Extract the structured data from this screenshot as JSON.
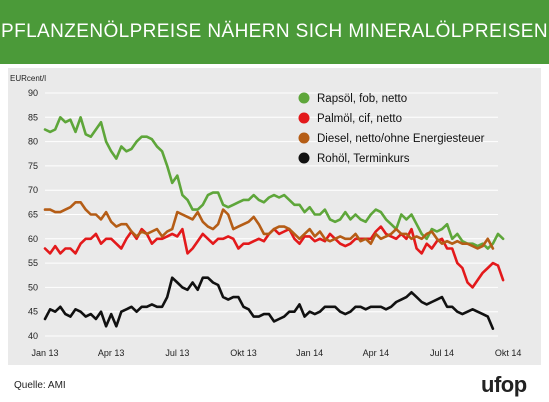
{
  "header": {
    "title": "PFLANZENÖLPREISE NÄHERN SICH MINERALÖLPREISEN"
  },
  "footer": {
    "source": "Quelle: AMI",
    "logo_text": "ufop"
  },
  "colors": {
    "header_bg": "#4b9a39",
    "panel_bg": "#eaeaea",
    "grid": "#ffffff"
  },
  "chart_data": {
    "type": "line",
    "ylabel": "EURcent/l",
    "ylim": [
      40,
      90
    ],
    "yticks": [
      40,
      45,
      50,
      55,
      60,
      65,
      70,
      75,
      80,
      85,
      90
    ],
    "xlim": [
      0,
      89
    ],
    "xticks": [
      {
        "x": 0,
        "label": "Jan 13"
      },
      {
        "x": 13,
        "label": "Apr 13"
      },
      {
        "x": 26,
        "label": "Jul 13"
      },
      {
        "x": 39,
        "label": "Okt 13"
      },
      {
        "x": 52,
        "label": "Jan 14"
      },
      {
        "x": 65,
        "label": "Apr 14"
      },
      {
        "x": 78,
        "label": "Jul 14"
      },
      {
        "x": 91,
        "label": "Okt 14"
      }
    ],
    "grid": true,
    "legend_position": "top-right",
    "series": [
      {
        "name": "Rapsöl, fob, netto",
        "color": "#5ea63a",
        "values": [
          82.5,
          82,
          82.5,
          85,
          84,
          84.5,
          82,
          85,
          81.5,
          81,
          82.5,
          84,
          80,
          78,
          76.5,
          79,
          78,
          78.5,
          80,
          81,
          81,
          80.5,
          79,
          78,
          75,
          71.5,
          73,
          69,
          68,
          66,
          66,
          67,
          69,
          69.5,
          69.5,
          67,
          66.5,
          67,
          67.5,
          68,
          68,
          69,
          68,
          67.5,
          68.5,
          69,
          68.5,
          69,
          68,
          67,
          67,
          65.5,
          66.5,
          65,
          65,
          66,
          64,
          63.5,
          64,
          65.5,
          64,
          65,
          64,
          63.5,
          65,
          66,
          65.5,
          64,
          63,
          62,
          65,
          64,
          65,
          63,
          61,
          60,
          62,
          61.5,
          62,
          63,
          60,
          61,
          59.5,
          59,
          59,
          58.5,
          59,
          58,
          59,
          61,
          60
        ]
      },
      {
        "name": "Palmöl, cif, netto",
        "color": "#e3191b",
        "values": [
          58,
          57,
          58.5,
          57,
          58,
          58,
          57,
          59,
          60,
          60,
          61,
          59,
          60,
          60,
          59,
          58,
          60,
          61.5,
          60,
          62,
          61,
          59,
          60,
          60,
          60.5,
          61,
          60.5,
          62,
          57,
          58,
          59.5,
          61,
          60,
          59,
          60,
          60,
          60.5,
          60,
          58,
          59,
          59,
          59.5,
          60,
          59.5,
          61,
          62,
          61,
          61.5,
          62,
          60,
          59,
          60.5,
          60.5,
          59.5,
          60,
          59.5,
          61,
          60,
          59,
          58.5,
          59,
          60,
          60,
          60,
          60,
          61.5,
          62.5,
          61,
          60.5,
          60,
          61,
          60,
          62,
          58,
          57,
          59,
          58,
          59.5,
          60,
          58,
          58,
          55,
          54,
          51,
          50,
          51.5,
          53,
          54,
          55,
          54.5,
          51.5
        ]
      },
      {
        "name": "Diesel, netto/ohne Energiesteuer",
        "color": "#b55d16",
        "values": [
          66,
          66,
          65.5,
          65.5,
          66,
          66.5,
          67.5,
          67.5,
          66,
          65,
          65,
          64,
          65.5,
          63.5,
          62.5,
          63,
          63,
          61.5,
          60.5,
          61.5,
          61,
          61.5,
          62,
          60.5,
          61.5,
          62,
          65.5,
          65,
          64.5,
          64,
          65.5,
          63.5,
          62.5,
          62,
          63,
          66,
          65,
          62,
          62.5,
          63,
          63.5,
          64.5,
          63,
          61,
          61,
          62,
          62.5,
          62.5,
          62,
          61,
          60,
          61,
          62,
          60.5,
          61.5,
          60,
          59.5,
          60,
          60.5,
          60,
          60,
          61,
          59.5,
          60,
          59,
          61,
          60,
          60.5,
          61,
          62,
          61,
          61,
          60,
          60.5,
          60,
          61,
          61.5,
          60,
          59,
          59.5,
          59,
          59.5,
          59,
          59,
          58.5,
          58,
          58.5,
          60,
          58
        ]
      },
      {
        "name": "Rohöl, Terminkurs",
        "color": "#111111",
        "values": [
          43.5,
          45.5,
          45,
          46,
          44.5,
          44,
          45.5,
          45,
          44,
          44.5,
          43.5,
          45,
          42,
          44.5,
          42,
          45,
          45.5,
          46,
          45,
          46,
          46,
          46.5,
          46,
          46,
          48,
          52,
          51,
          50,
          49.5,
          51,
          49.5,
          52,
          52,
          51,
          50.5,
          48,
          47.5,
          48,
          48,
          46,
          45.5,
          44,
          44,
          44.5,
          44.5,
          43,
          43.5,
          44,
          45,
          45,
          46.5,
          44,
          45,
          44.5,
          45,
          46,
          46,
          46,
          45,
          44.5,
          45,
          46,
          46,
          45.5,
          46,
          46,
          46,
          45.5,
          46,
          47,
          47.5,
          48,
          49,
          48,
          47,
          46.5,
          47,
          47.5,
          48,
          46,
          46,
          45,
          44.5,
          45,
          45.5,
          45,
          44.5,
          44,
          41.5
        ]
      }
    ]
  }
}
